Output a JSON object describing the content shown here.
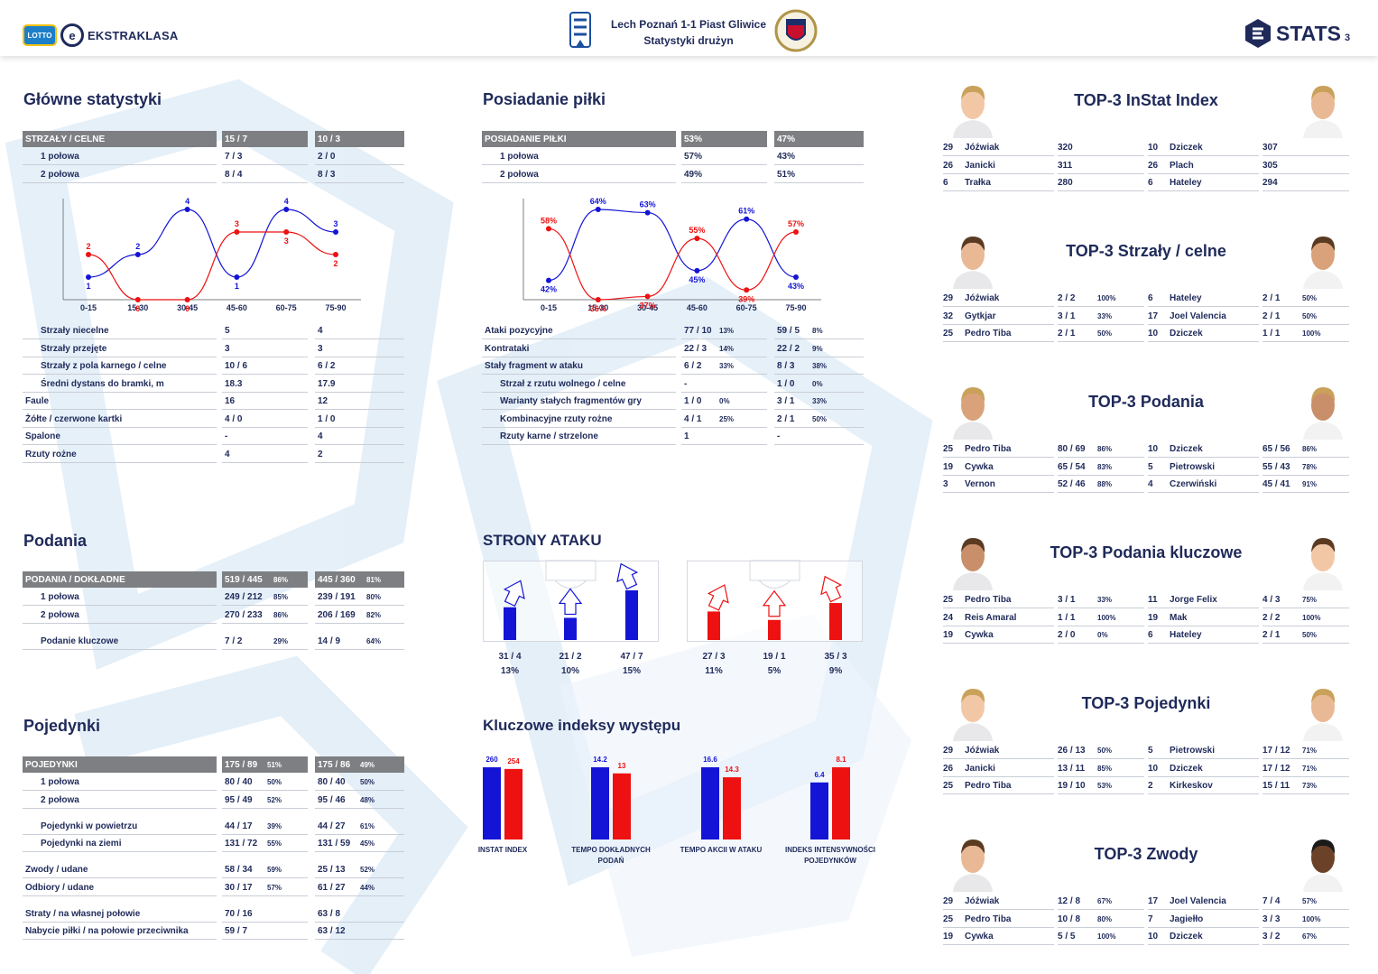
{
  "header": {
    "brand": "EKSTRAKLASA",
    "lotto": "LOTTO",
    "match": "Lech Poznań 1-1 Piast Gliwice",
    "subtitle": "Statystyki drużyn",
    "stats_logo": "STATS",
    "page": "3"
  },
  "colors": {
    "home": "#1414d6",
    "away": "#ee1111",
    "navy": "#1f2a5a",
    "header_gray": "#7d7f82"
  },
  "sections": {
    "main": "Główne statystyki",
    "possession": "Posiadanie piłki",
    "passes": "Podania",
    "attack_sides": "STRONY ATAKU",
    "duels": "Pojedynki",
    "key_indices": "Kluczowe indeksy występu"
  },
  "main_stats": {
    "header": {
      "label": "STRZAŁY / CELNE",
      "home": "15 / 7",
      "away": "10 / 3"
    },
    "halves": [
      {
        "label": "1 połowa",
        "home": "7 / 3",
        "away": "2 / 0"
      },
      {
        "label": "2 połowa",
        "home": "8 / 4",
        "away": "8 / 3"
      }
    ],
    "rows": [
      {
        "label": "Strzały niecelne",
        "home": "5",
        "away": "4",
        "indent": true
      },
      {
        "label": "Strzały przejęte",
        "home": "3",
        "away": "3",
        "indent": true
      },
      {
        "label": "Strzały z pola karnego / celne",
        "home": "10 / 6",
        "away": "6 / 2",
        "indent": true
      },
      {
        "label": "Średni dystans do bramki, m",
        "home": "18.3",
        "away": "17.9",
        "indent": true
      },
      {
        "label": "Faule",
        "home": "16",
        "away": "12",
        "indent": false
      },
      {
        "label": "Żółte / czerwone kartki",
        "home": "4 / 0",
        "away": "1 / 0",
        "indent": false
      },
      {
        "label": "Spalone",
        "home": "-",
        "away": "4",
        "indent": false
      },
      {
        "label": "Rzuty rożne",
        "home": "4",
        "away": "2",
        "indent": false
      }
    ]
  },
  "possession": {
    "header": {
      "label": "POSIADANIE PIŁKI",
      "home": "53%",
      "away": "47%"
    },
    "halves": [
      {
        "label": "1 połowa",
        "home": "57%",
        "away": "43%"
      },
      {
        "label": "2 połowa",
        "home": "49%",
        "away": "51%"
      }
    ],
    "rows": [
      {
        "label": "Ataki pozycyjne",
        "home": "77 / 10",
        "home_pct": "13%",
        "away": "59 / 5",
        "away_pct": "8%",
        "indent": false
      },
      {
        "label": "Kontrataki",
        "home": "22 / 3",
        "home_pct": "14%",
        "away": "22 / 2",
        "away_pct": "9%",
        "indent": false
      },
      {
        "label": "Stały fragment w ataku",
        "home": "6 / 2",
        "home_pct": "33%",
        "away": "8 / 3",
        "away_pct": "38%",
        "indent": false
      },
      {
        "label": "Strzał z rzutu wolnego / celne",
        "home": "-",
        "home_pct": "",
        "away": "1 / 0",
        "away_pct": "0%",
        "indent": true
      },
      {
        "label": "Warianty stałych fragmentów gry",
        "home": "1 / 0",
        "home_pct": "0%",
        "away": "3 / 1",
        "away_pct": "33%",
        "indent": true
      },
      {
        "label": "Kombinacyjne rzuty rożne",
        "home": "4 / 1",
        "home_pct": "25%",
        "away": "2 / 1",
        "away_pct": "50%",
        "indent": true
      },
      {
        "label": "Rzuty karne / strzelone",
        "home": "1",
        "home_pct": "",
        "away": "-",
        "away_pct": "",
        "indent": true
      }
    ]
  },
  "passes": {
    "header": {
      "label": "PODANIA / DOKŁADNE",
      "home": "519 / 445",
      "home_pct": "86%",
      "away": "445 / 360",
      "away_pct": "81%"
    },
    "rows": [
      {
        "label": "1 połowa",
        "home": "249 / 212",
        "home_pct": "85%",
        "away": "239 / 191",
        "away_pct": "80%"
      },
      {
        "label": "2 połowa",
        "home": "270 / 233",
        "home_pct": "86%",
        "away": "206 / 169",
        "away_pct": "82%"
      },
      {
        "label": "Podanie kluczowe",
        "home": "7 / 2",
        "home_pct": "29%",
        "away": "14 / 9",
        "away_pct": "64%"
      }
    ]
  },
  "duels": {
    "header": {
      "label": "POJEDYNKI",
      "home": "175 / 89",
      "home_pct": "51%",
      "away": "175 / 86",
      "away_pct": "49%"
    },
    "rows": [
      {
        "label": "1 połowa",
        "home": "80 / 40",
        "home_pct": "50%",
        "away": "80 / 40",
        "away_pct": "50%",
        "indent": true
      },
      {
        "label": "2 połowa",
        "home": "95 / 49",
        "home_pct": "52%",
        "away": "95 / 46",
        "away_pct": "48%",
        "indent": true
      },
      {
        "label": "Pojedynki w powietrzu",
        "home": "44 / 17",
        "home_pct": "39%",
        "away": "44 / 27",
        "away_pct": "61%",
        "indent": true
      },
      {
        "label": "Pojedynki na ziemi",
        "home": "131 / 72",
        "home_pct": "55%",
        "away": "131 / 59",
        "away_pct": "45%",
        "indent": true
      },
      {
        "label": "Zwody / udane",
        "home": "58 / 34",
        "home_pct": "59%",
        "away": "25 / 13",
        "away_pct": "52%",
        "indent": false
      },
      {
        "label": "Odbiory / udane",
        "home": "30 / 17",
        "home_pct": "57%",
        "away": "61 / 27",
        "away_pct": "44%",
        "indent": false
      },
      {
        "label": "Straty / na własnej połowie",
        "home": "70 / 16",
        "home_pct": "",
        "away": "63 / 8",
        "away_pct": "",
        "indent": false
      },
      {
        "label": "Nabycie piłki / na połowie przeciwnika",
        "home": "59 / 7",
        "home_pct": "",
        "away": "63 / 12",
        "away_pct": "",
        "indent": false
      }
    ]
  },
  "attack_sides": {
    "home": [
      {
        "value": "31 / 4",
        "pct": "13%",
        "share": 0.31
      },
      {
        "value": "21 / 2",
        "pct": "10%",
        "share": 0.21
      },
      {
        "value": "47 / 7",
        "pct": "15%",
        "share": 0.47
      }
    ],
    "away": [
      {
        "value": "27 / 3",
        "pct": "11%",
        "share": 0.27
      },
      {
        "value": "19 / 1",
        "pct": "5%",
        "share": 0.19
      },
      {
        "value": "35 / 3",
        "pct": "9%",
        "share": 0.35
      }
    ]
  },
  "chart_data": [
    {
      "type": "line",
      "id": "shots-by-interval",
      "categories": [
        "0-15",
        "15-30",
        "30-45",
        "45-60",
        "60-75",
        "75-90"
      ],
      "series": [
        {
          "team": "home",
          "values": [
            1,
            2,
            4,
            1,
            4,
            3
          ]
        },
        {
          "team": "away",
          "values": [
            2,
            0,
            0,
            3,
            3,
            2
          ]
        }
      ],
      "ylim": [
        0,
        4
      ]
    },
    {
      "type": "line",
      "id": "possession-by-interval",
      "categories": [
        "0-15",
        "15-30",
        "30-45",
        "45-60",
        "60-75",
        "75-90"
      ],
      "series": [
        {
          "team": "home",
          "values": [
            42,
            64,
            63,
            45,
            61,
            43
          ],
          "suffix": "%"
        },
        {
          "team": "away",
          "values": [
            58,
            36,
            37,
            55,
            39,
            57
          ],
          "suffix": "%"
        }
      ],
      "ylim": [
        36,
        64
      ]
    },
    {
      "type": "bar",
      "id": "key-indices",
      "categories": [
        "INSTAT INDEX",
        "TEMPO DOKŁADNYCH PODAŃ",
        "TEMPO AKCII W ATAKU",
        "INDEKS INTENSYWNOŚCI POJEDYNKÓW"
      ],
      "series": [
        {
          "team": "home",
          "values": [
            260,
            14.2,
            16.6,
            6.4
          ]
        },
        {
          "team": "away",
          "values": [
            254,
            13,
            14.3,
            8.1
          ]
        }
      ]
    }
  ],
  "top3": [
    {
      "title": "TOP-3 InStat Index",
      "home": [
        {
          "num": "29",
          "name": "Jóźwiak",
          "value": "320",
          "pct": ""
        },
        {
          "num": "26",
          "name": "Janicki",
          "value": "311",
          "pct": ""
        },
        {
          "num": "6",
          "name": "Trałka",
          "value": "280",
          "pct": ""
        }
      ],
      "away": [
        {
          "num": "10",
          "name": "Dziczek",
          "value": "307",
          "pct": ""
        },
        {
          "num": "26",
          "name": "Plach",
          "value": "305",
          "pct": ""
        },
        {
          "num": "6",
          "name": "Hateley",
          "value": "294",
          "pct": ""
        }
      ]
    },
    {
      "title": "TOP-3 Strzały / celne",
      "home": [
        {
          "num": "29",
          "name": "Jóźwiak",
          "value": "2 / 2",
          "pct": "100%"
        },
        {
          "num": "32",
          "name": "Gytkjar",
          "value": "3 / 1",
          "pct": "33%"
        },
        {
          "num": "25",
          "name": "Pedro Tiba",
          "value": "2 / 1",
          "pct": "50%"
        }
      ],
      "away": [
        {
          "num": "6",
          "name": "Hateley",
          "value": "2 / 1",
          "pct": "50%"
        },
        {
          "num": "17",
          "name": "Joel Valencia",
          "value": "2 / 1",
          "pct": "50%"
        },
        {
          "num": "10",
          "name": "Dziczek",
          "value": "1 / 1",
          "pct": "100%"
        }
      ]
    },
    {
      "title": "TOP-3 Podania",
      "home": [
        {
          "num": "25",
          "name": "Pedro Tiba",
          "value": "80 / 69",
          "pct": "86%"
        },
        {
          "num": "19",
          "name": "Cywka",
          "value": "65 / 54",
          "pct": "83%"
        },
        {
          "num": "3",
          "name": "Vernon",
          "value": "52 / 46",
          "pct": "88%"
        }
      ],
      "away": [
        {
          "num": "10",
          "name": "Dziczek",
          "value": "65 / 56",
          "pct": "86%"
        },
        {
          "num": "5",
          "name": "Pietrowski",
          "value": "55 / 43",
          "pct": "78%"
        },
        {
          "num": "4",
          "name": "Czerwiński",
          "value": "45 / 41",
          "pct": "91%"
        }
      ]
    },
    {
      "title": "TOP-3 Podania kluczowe",
      "home": [
        {
          "num": "25",
          "name": "Pedro Tiba",
          "value": "3 / 1",
          "pct": "33%"
        },
        {
          "num": "24",
          "name": "Reis Amaral",
          "value": "1 / 1",
          "pct": "100%"
        },
        {
          "num": "19",
          "name": "Cywka",
          "value": "2 / 0",
          "pct": "0%"
        }
      ],
      "away": [
        {
          "num": "11",
          "name": "Jorge Felix",
          "value": "4 / 3",
          "pct": "75%"
        },
        {
          "num": "19",
          "name": "Mak",
          "value": "2 / 2",
          "pct": "100%"
        },
        {
          "num": "6",
          "name": "Hateley",
          "value": "2 / 1",
          "pct": "50%"
        }
      ]
    },
    {
      "title": "TOP-3 Pojedynki",
      "home": [
        {
          "num": "29",
          "name": "Jóźwiak",
          "value": "26 / 13",
          "pct": "50%"
        },
        {
          "num": "26",
          "name": "Janicki",
          "value": "13 / 11",
          "pct": "85%"
        },
        {
          "num": "25",
          "name": "Pedro Tiba",
          "value": "19 / 10",
          "pct": "53%"
        }
      ],
      "away": [
        {
          "num": "5",
          "name": "Pietrowski",
          "value": "17 / 12",
          "pct": "71%"
        },
        {
          "num": "10",
          "name": "Dziczek",
          "value": "17 / 12",
          "pct": "71%"
        },
        {
          "num": "2",
          "name": "Kirkeskov",
          "value": "15 / 11",
          "pct": "73%"
        }
      ]
    },
    {
      "title": "TOP-3 Zwody",
      "home": [
        {
          "num": "29",
          "name": "Jóźwiak",
          "value": "12 / 8",
          "pct": "67%"
        },
        {
          "num": "25",
          "name": "Pedro Tiba",
          "value": "10 / 8",
          "pct": "80%"
        },
        {
          "num": "19",
          "name": "Cywka",
          "value": "5 / 5",
          "pct": "100%"
        }
      ],
      "away": [
        {
          "num": "17",
          "name": "Joel Valencia",
          "value": "7 / 4",
          "pct": "57%"
        },
        {
          "num": "7",
          "name": "Jagiełło",
          "value": "3 / 3",
          "pct": "100%"
        },
        {
          "num": "10",
          "name": "Dziczek",
          "value": "3 / 2",
          "pct": "67%"
        }
      ]
    }
  ]
}
